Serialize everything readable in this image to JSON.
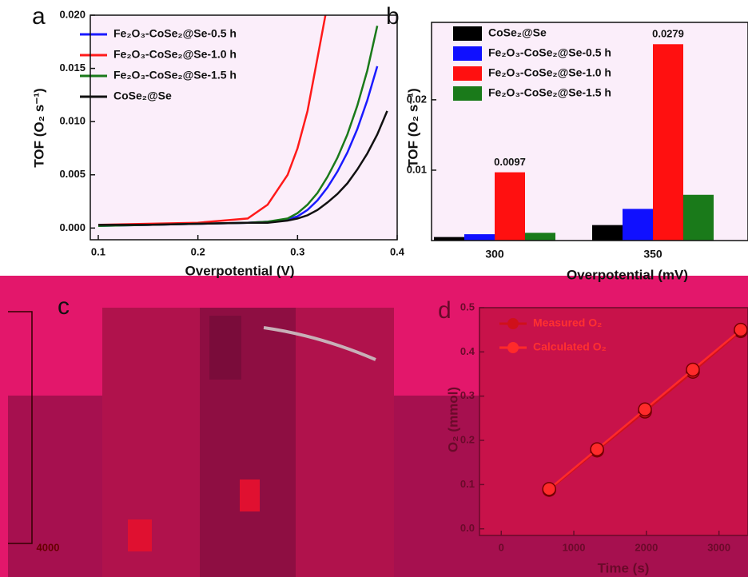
{
  "chart_data": [
    {
      "type": "line",
      "panel_label": "a",
      "xlabel": "Overpotential (V)",
      "ylabel": "TOF (O₂ s⁻¹)",
      "x": [
        0.1,
        0.15,
        0.2,
        0.25,
        0.27,
        0.29,
        0.3,
        0.31,
        0.32,
        0.33,
        0.34,
        0.35,
        0.36,
        0.37,
        0.38,
        0.39
      ],
      "series": [
        {
          "name": "Fe₂O₃-CoSe₂@Se-0.5 h",
          "color": "#1a1aff",
          "values": [
            0.0002,
            0.0003,
            0.0004,
            0.0005,
            0.0006,
            0.0008,
            0.0011,
            0.0017,
            0.0026,
            0.0038,
            0.0053,
            0.0071,
            0.0093,
            0.012,
            0.0152,
            null
          ]
        },
        {
          "name": "Fe₂O₃-CoSe₂@Se-1.0 h",
          "color": "#ff1a1a",
          "values": [
            0.0003,
            0.0004,
            0.0005,
            0.0009,
            0.0022,
            0.005,
            0.0075,
            0.011,
            0.016,
            0.021,
            null,
            null,
            null,
            null,
            null,
            null
          ]
        },
        {
          "name": "Fe₂O₃-CoSe₂@Se-1.5 h",
          "color": "#1a7a1a",
          "values": [
            0.0002,
            0.0003,
            0.0004,
            0.0005,
            0.0006,
            0.0009,
            0.0014,
            0.0022,
            0.0033,
            0.0048,
            0.0066,
            0.0088,
            0.0115,
            0.0148,
            0.019,
            null
          ]
        },
        {
          "name": "CoSe₂@Se",
          "color": "#111111",
          "values": [
            0.0003,
            0.0003,
            0.0004,
            0.0005,
            0.0005,
            0.0007,
            0.0009,
            0.0012,
            0.0017,
            0.0024,
            0.0032,
            0.0042,
            0.0055,
            0.007,
            0.0088,
            0.011
          ]
        }
      ],
      "xlim": [
        0.092,
        0.4
      ],
      "xticks": [
        0.1,
        0.2,
        0.3,
        0.4
      ],
      "ylim": [
        -0.0011,
        0.02
      ],
      "yticks": [
        {
          "value": 0,
          "label": "0.000"
        },
        0.005,
        {
          "value": 0.01,
          "label": "0.010"
        },
        0.015,
        {
          "value": 0.02,
          "label": "0.020"
        }
      ],
      "markers": false
    },
    {
      "type": "bar",
      "panel_label": "b",
      "xlabel": "Overpotential (mV)",
      "ylabel": "TOF (O₂ s⁻¹)",
      "categories": [
        "300",
        "350"
      ],
      "series": [
        {
          "name": "CoSe₂@Se",
          "color": "#000000",
          "values": [
            0.0005,
            0.0022
          ],
          "data_labels": false
        },
        {
          "name": "Fe₂O₃-CoSe₂@Se-0.5 h",
          "color": "#1010ff",
          "values": [
            0.0009,
            0.0045
          ],
          "data_labels": false
        },
        {
          "name": "Fe₂O₃-CoSe₂@Se-1.0 h",
          "color": "#ff1010",
          "values": [
            0.0097,
            0.0279
          ],
          "data_labels": true
        },
        {
          "name": "Fe₂O₃-CoSe₂@Se-1.5 h",
          "color": "#1a7a1a",
          "values": [
            0.0011,
            0.0065
          ],
          "data_labels": false
        }
      ],
      "ylim": [
        0,
        0.031
      ],
      "yticks": [
        0.01,
        0.02
      ]
    },
    {
      "type": "line",
      "panel_label": "d",
      "xlabel": "Time (s)",
      "ylabel": "O₂ (mmol)",
      "x": [
        660,
        1320,
        1980,
        2640,
        3300
      ],
      "series": [
        {
          "name": "Measured O₂",
          "color": "#d0101a",
          "values": [
            0.088,
            0.177,
            0.265,
            0.355,
            0.447
          ]
        },
        {
          "name": "Calculated O₂",
          "color": "#ff2a2a",
          "values": [
            0.09,
            0.18,
            0.27,
            0.36,
            0.45
          ]
        }
      ],
      "xlim": [
        -300,
        3400
      ],
      "xticks": [
        0,
        1000,
        2000,
        3000
      ],
      "ylim": [
        -0.015,
        0.5
      ],
      "yticks": [
        {
          "value": 0,
          "label": "0.0"
        },
        0.1,
        0.2,
        0.3,
        0.4,
        0.5
      ],
      "markers": true
    }
  ],
  "panel_c": {
    "label": "c",
    "tick_fragment": "4000"
  }
}
